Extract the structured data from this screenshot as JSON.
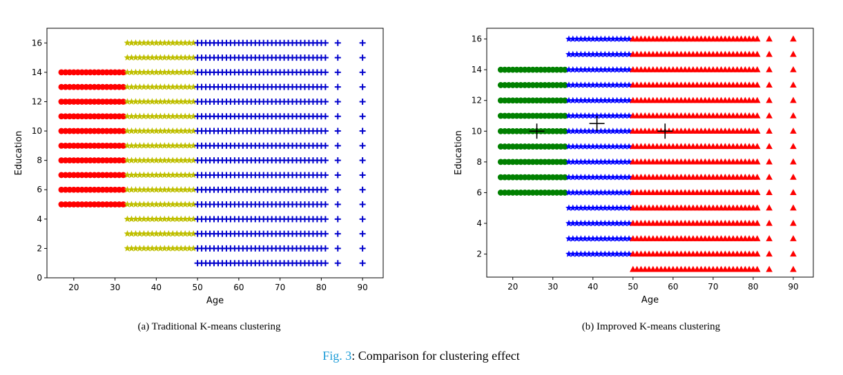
{
  "caption": {
    "fig_ref": "Fig. 3",
    "text": ": Comparison for clustering effect"
  },
  "chart_data": [
    {
      "type": "scatter",
      "subcaption": "(a) Traditional K-means clustering",
      "xlabel": "Age",
      "ylabel": "Education",
      "xlim": [
        13.5,
        95
      ],
      "ylim": [
        0,
        17
      ],
      "xticks": [
        20,
        30,
        40,
        50,
        60,
        70,
        80,
        90
      ],
      "yticks": [
        0,
        2,
        4,
        6,
        8,
        10,
        12,
        14,
        16
      ],
      "grid": false,
      "series": [
        {
          "color": "#ff0000",
          "marker": "circle",
          "ages": [
            17,
            18,
            19,
            20,
            21,
            22,
            23,
            24,
            25,
            26,
            27,
            28,
            29,
            30,
            31,
            32
          ],
          "edu": [
            5,
            6,
            7,
            8,
            9,
            10,
            11,
            12,
            13,
            14
          ]
        },
        {
          "color": "#bfbf00",
          "marker": "star",
          "ages": [
            33,
            34,
            35,
            36,
            37,
            38,
            39,
            40,
            41,
            42,
            43,
            44,
            45,
            46,
            47,
            48,
            49
          ],
          "edu": [
            2,
            3,
            4,
            5,
            6,
            7,
            8,
            9,
            10,
            11,
            12,
            13,
            14,
            15,
            16
          ]
        },
        {
          "color": "#0000cc",
          "marker": "plus",
          "ages": [
            50,
            51,
            52,
            53,
            54,
            55,
            56,
            57,
            58,
            59,
            60,
            61,
            62,
            63,
            64,
            65,
            66,
            67,
            68,
            69,
            70,
            71,
            72,
            73,
            74,
            75,
            76,
            77,
            78,
            79,
            80,
            81,
            84,
            90
          ],
          "edu": [
            1,
            2,
            3,
            4,
            5,
            6,
            7,
            8,
            9,
            10,
            11,
            12,
            13,
            14,
            15,
            16
          ]
        }
      ],
      "centroids": []
    },
    {
      "type": "scatter",
      "subcaption": "(b) Improved K-means clustering",
      "xlabel": "Age",
      "ylabel": "Education",
      "xlim": [
        13.5,
        95
      ],
      "ylim": [
        0.5,
        16.7
      ],
      "xticks": [
        20,
        30,
        40,
        50,
        60,
        70,
        80,
        90
      ],
      "yticks": [
        2,
        4,
        6,
        8,
        10,
        12,
        14,
        16
      ],
      "grid": false,
      "series": [
        {
          "color": "#008000",
          "marker": "circle",
          "ages": [
            17,
            18,
            19,
            20,
            21,
            22,
            23,
            24,
            25,
            26,
            27,
            28,
            29,
            30,
            31,
            32,
            33
          ],
          "edu": [
            6,
            7,
            8,
            9,
            10,
            11,
            12,
            13,
            14
          ]
        },
        {
          "color": "#0000ff",
          "marker": "star",
          "ages": [
            34,
            35,
            36,
            37,
            38,
            39,
            40,
            41,
            42,
            43,
            44,
            45,
            46,
            47,
            48,
            49
          ],
          "edu": [
            2,
            3,
            4,
            5,
            6,
            7,
            8,
            9,
            10,
            11,
            12,
            13,
            14,
            15,
            16
          ]
        },
        {
          "color": "#ff0000",
          "marker": "triangle",
          "ages": [
            50,
            51,
            52,
            53,
            54,
            55,
            56,
            57,
            58,
            59,
            60,
            61,
            62,
            63,
            64,
            65,
            66,
            67,
            68,
            69,
            70,
            71,
            72,
            73,
            74,
            75,
            76,
            77,
            78,
            79,
            80,
            81,
            84,
            90
          ],
          "edu": [
            1,
            2,
            3,
            4,
            5,
            6,
            7,
            8,
            9,
            10,
            11,
            12,
            13,
            14,
            15,
            16
          ]
        }
      ],
      "centroids": [
        {
          "x": 26,
          "y": 10
        },
        {
          "x": 41,
          "y": 10.5
        },
        {
          "x": 58,
          "y": 10
        }
      ]
    }
  ]
}
